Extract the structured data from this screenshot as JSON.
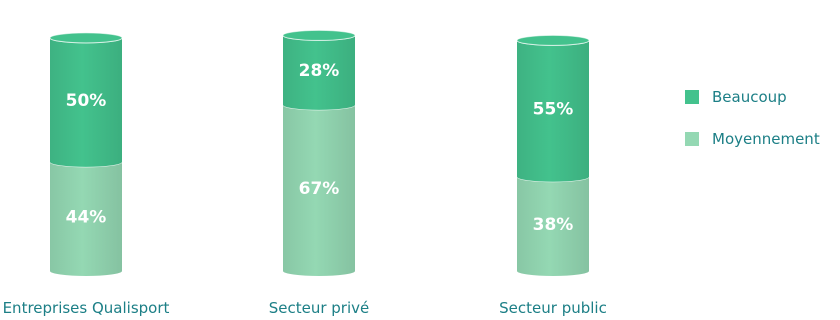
{
  "chart_data": {
    "type": "bar",
    "stacked": true,
    "categories": [
      "Entreprises Qualisport",
      "Secteur privé",
      "Secteur public"
    ],
    "series": [
      {
        "name": "Moyennement",
        "values": [
          44,
          67,
          38
        ],
        "labels": [
          "44%",
          "67%",
          "38%"
        ],
        "color": "#94d8b3"
      },
      {
        "name": "Beaucoup",
        "values": [
          50,
          28,
          55
        ],
        "labels": [
          "50%",
          "28%",
          "55%"
        ],
        "color": "#43c28d"
      }
    ],
    "ylim": [
      0,
      100
    ],
    "legend_position": "right",
    "legend_order": [
      "Beaucoup",
      "Moyennement"
    ],
    "grid": false,
    "category_label_color": "#1c7f86"
  }
}
